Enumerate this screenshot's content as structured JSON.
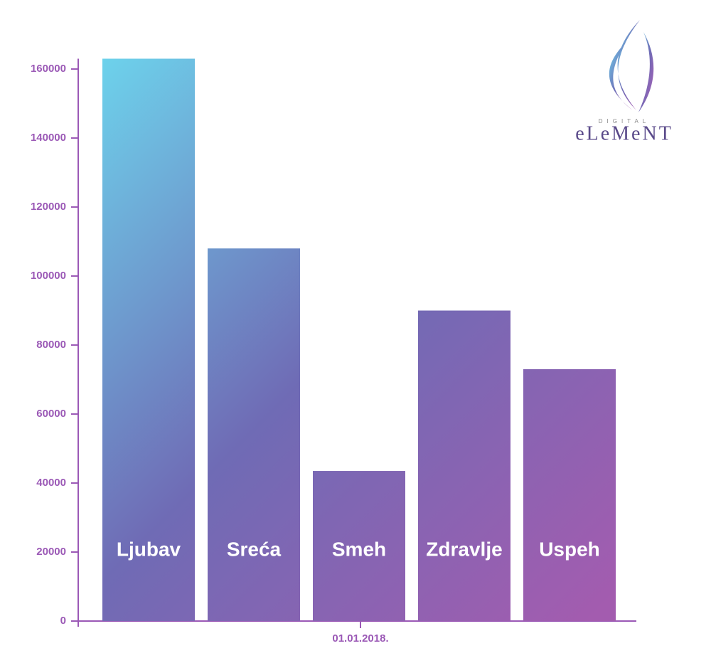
{
  "chart_data": {
    "type": "bar",
    "categories": [
      "Ljubav",
      "Sreća",
      "Smeh",
      "Zdravlje",
      "Uspeh"
    ],
    "values": [
      163000,
      108000,
      43500,
      90000,
      73000
    ],
    "x_label": "01.01.2018.",
    "gradient": [
      "#6dd3ec",
      "#6f6bb5",
      "#a35caf"
    ],
    "axis_color": "#9b59b6",
    "ylim": [
      0,
      163000
    ],
    "yticks": [
      0,
      20000,
      40000,
      60000,
      80000,
      100000,
      120000,
      140000,
      160000
    ],
    "grid": false
  },
  "logo": {
    "top": "DIGITAL",
    "name": "eLeMeNT"
  }
}
